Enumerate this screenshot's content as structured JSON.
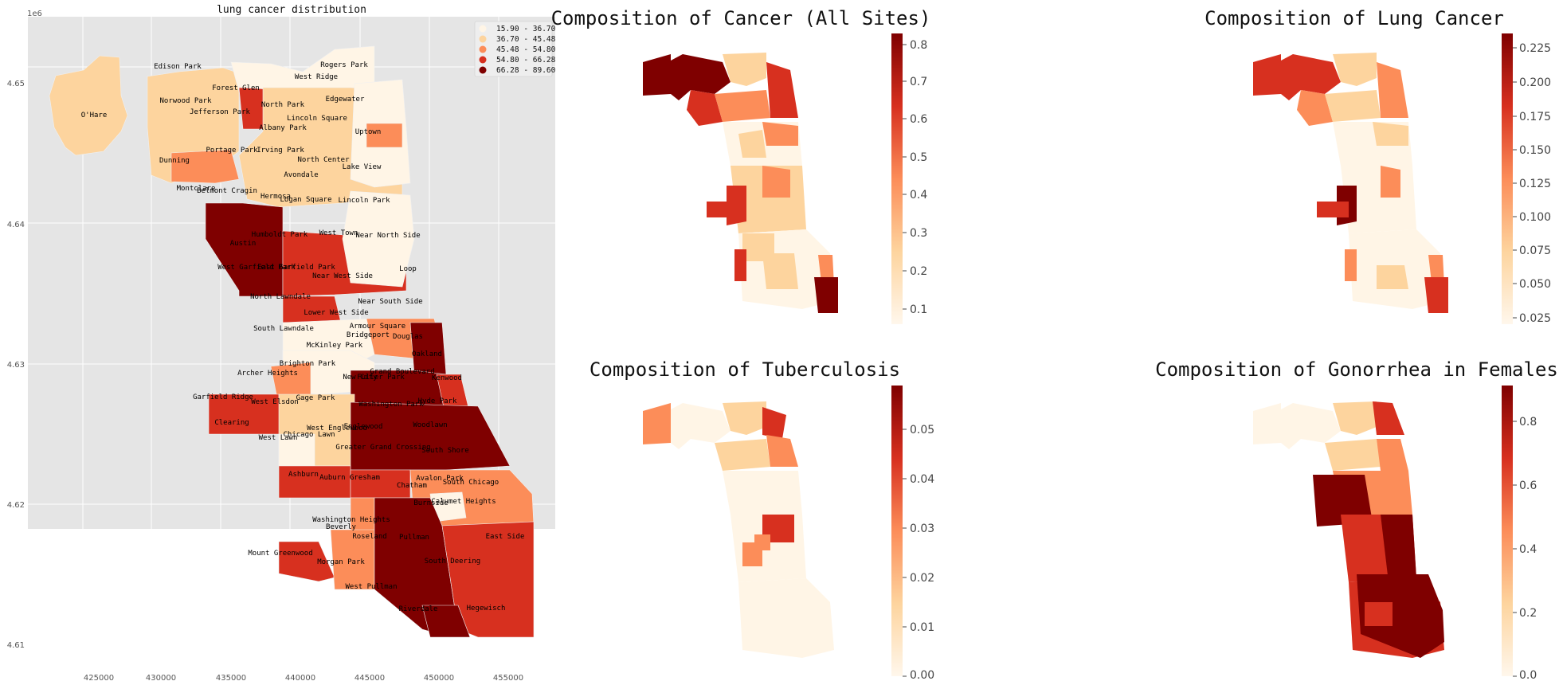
{
  "main_map": {
    "title": "lung cancer distribution",
    "exponent_label": "1e6",
    "x_ticks": [
      "425000",
      "430000",
      "435000",
      "440000",
      "445000",
      "450000",
      "455000"
    ],
    "y_ticks": [
      "4.65",
      "4.64",
      "4.63",
      "4.62",
      "4.61"
    ],
    "legend": [
      {
        "label": "15.90 - 36.70",
        "color": "#fff5e6"
      },
      {
        "label": "36.70 - 45.48",
        "color": "#fdd49e"
      },
      {
        "label": "45.48 - 54.80",
        "color": "#fc8d59"
      },
      {
        "label": "54.80 - 66.28",
        "color": "#d7301f"
      },
      {
        "label": "66.28 - 89.60",
        "color": "#7f0000"
      }
    ],
    "neighborhoods": [
      "Rogers Park",
      "Edison Park",
      "West Ridge",
      "O'Hare",
      "Forest Glen",
      "Edgewater",
      "Norwood Park",
      "North Park",
      "Jefferson Park",
      "Lincoln Square",
      "Albany Park",
      "Uptown",
      "Portage Park",
      "Irving Park",
      "Dunning",
      "North Center",
      "Lake View",
      "Avondale",
      "Montclare",
      "Belmont Cragin",
      "Hermosa",
      "Logan Square",
      "Lincoln Park",
      "Humboldt Park",
      "West Town",
      "Near North Side",
      "Austin",
      "West Garfield Park",
      "East Garfield Park",
      "Loop",
      "Near West Side",
      "North Lawndale",
      "Near South Side",
      "Lower West Side",
      "South Lawndale",
      "Armour Square",
      "Bridgeport",
      "Douglas",
      "McKinley Park",
      "Oakland",
      "Brighton Park",
      "Grand Boulevard",
      "Archer Heights",
      "New City",
      "Fuller Park",
      "Kenwood",
      "Garfield Ridge",
      "West Elsdon",
      "Gage Park",
      "Washington Park",
      "Hyde Park",
      "Clearing",
      "Woodlawn",
      "West Lawn",
      "Chicago Lawn",
      "West Englewood",
      "Englewood",
      "Greater Grand Crossing",
      "South Shore",
      "Ashburn",
      "Auburn Gresham",
      "Chatham",
      "Avalon Park",
      "South Chicago",
      "Burnside",
      "Calumet Heights",
      "Washington Heights",
      "Beverly",
      "Roseland",
      "Pullman",
      "East Side",
      "Mount Greenwood",
      "Morgan Park",
      "South Deering",
      "West Pullman",
      "Riverdale",
      "Hegewisch"
    ]
  },
  "small_maps": [
    {
      "title": "Composition of Cancer (All Sites)",
      "colorbar_ticks": [
        "0.8",
        "0.7",
        "0.6",
        "0.5",
        "0.4",
        "0.3",
        "0.2",
        "0.1"
      ]
    },
    {
      "title": "Composition of Lung Cancer",
      "colorbar_ticks": [
        "0.225",
        "0.200",
        "0.175",
        "0.150",
        "0.125",
        "0.100",
        "0.075",
        "0.050",
        "0.025"
      ]
    },
    {
      "title": "Composition of Tuberculosis",
      "colorbar_ticks": [
        "0.05",
        "0.04",
        "0.03",
        "0.02",
        "0.01",
        "0.00"
      ]
    },
    {
      "title": "Composition of Gonorrhea in Females",
      "colorbar_ticks": [
        "0.8",
        "0.6",
        "0.4",
        "0.2",
        "0.0"
      ]
    }
  ],
  "colors": {
    "axes_bg": "#e5e5e5",
    "gradient": [
      "#fff7ec",
      "#fdd49e",
      "#fc8d59",
      "#d7301f",
      "#7f0000"
    ]
  }
}
